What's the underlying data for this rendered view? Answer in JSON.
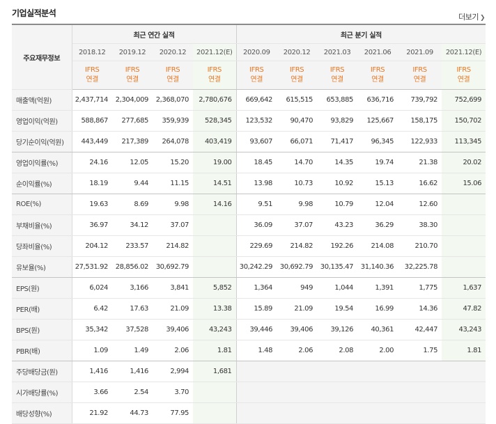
{
  "title": "기업실적분석",
  "more_label": "더보기",
  "corner_label": "주요재무정보",
  "groups": {
    "annual": "최근 연간 실적",
    "quarter": "최근 분기 실적"
  },
  "periods": [
    "2018.12",
    "2019.12",
    "2020.12",
    "2021.12(E)",
    "2020.09",
    "2020.12",
    "2021.03",
    "2021.06",
    "2021.09",
    "2021.12(E)"
  ],
  "ifrs": [
    "IFRS",
    "연결"
  ],
  "rows": [
    {
      "label": "매출액(억원)",
      "values": [
        "2,437,714",
        "2,304,009",
        "2,368,070",
        "2,780,676",
        "669,642",
        "615,515",
        "653,885",
        "636,716",
        "739,792",
        "752,699"
      ]
    },
    {
      "label": "영업이익(억원)",
      "values": [
        "588,867",
        "277,685",
        "359,939",
        "528,345",
        "123,532",
        "90,470",
        "93,829",
        "125,667",
        "158,175",
        "150,702"
      ]
    },
    {
      "label": "당기순이익(억원)",
      "values": [
        "443,449",
        "217,389",
        "264,078",
        "403,419",
        "93,607",
        "66,071",
        "71,417",
        "96,345",
        "122,933",
        "113,345"
      ]
    },
    {
      "label": "영업이익률(%)",
      "values": [
        "24.16",
        "12.05",
        "15.20",
        "19.00",
        "18.45",
        "14.70",
        "14.35",
        "19.74",
        "21.38",
        "20.02"
      ]
    },
    {
      "label": "순이익률(%)",
      "values": [
        "18.19",
        "9.44",
        "11.15",
        "14.51",
        "13.98",
        "10.73",
        "10.92",
        "15.13",
        "16.62",
        "15.06"
      ]
    },
    {
      "label": "ROE(%)",
      "values": [
        "19.63",
        "8.69",
        "9.98",
        "14.16",
        "9.51",
        "9.98",
        "10.79",
        "12.04",
        "12.60",
        ""
      ]
    },
    {
      "label": "부채비율(%)",
      "values": [
        "36.97",
        "34.12",
        "37.07",
        "",
        "36.09",
        "37.07",
        "43.23",
        "36.29",
        "38.30",
        ""
      ]
    },
    {
      "label": "당좌비율(%)",
      "values": [
        "204.12",
        "233.57",
        "214.82",
        "",
        "229.69",
        "214.82",
        "192.26",
        "214.08",
        "210.70",
        ""
      ]
    },
    {
      "label": "유보율(%)",
      "values": [
        "27,531.92",
        "28,856.02",
        "30,692.79",
        "",
        "30,242.29",
        "30,692.79",
        "30,135.47",
        "31,140.36",
        "32,225.78",
        ""
      ]
    },
    {
      "label": "EPS(원)",
      "values": [
        "6,024",
        "3,166",
        "3,841",
        "5,852",
        "1,364",
        "949",
        "1,044",
        "1,391",
        "1,775",
        "1,637"
      ]
    },
    {
      "label": "PER(배)",
      "values": [
        "6.42",
        "17.63",
        "21.09",
        "13.38",
        "15.89",
        "21.09",
        "19.54",
        "16.99",
        "14.36",
        "47.82"
      ]
    },
    {
      "label": "BPS(원)",
      "values": [
        "35,342",
        "37,528",
        "39,406",
        "43,243",
        "39,446",
        "39,406",
        "39,126",
        "40,361",
        "42,447",
        "43,243"
      ]
    },
    {
      "label": "PBR(배)",
      "values": [
        "1.09",
        "1.49",
        "2.06",
        "1.81",
        "1.48",
        "2.06",
        "2.08",
        "2.00",
        "1.75",
        "1.81"
      ]
    },
    {
      "label": "주당배당금(원)",
      "values": [
        "1,416",
        "1,416",
        "2,994",
        "1,681",
        "",
        "",
        "",
        "",
        "",
        ""
      ]
    },
    {
      "label": "시가배당률(%)",
      "values": [
        "3.66",
        "2.54",
        "3.70",
        "",
        "",
        "",
        "",
        "",
        "",
        ""
      ]
    },
    {
      "label": "배당성향(%)",
      "values": [
        "21.92",
        "44.73",
        "77.95",
        "",
        "",
        "",
        "",
        "",
        "",
        ""
      ]
    }
  ]
}
